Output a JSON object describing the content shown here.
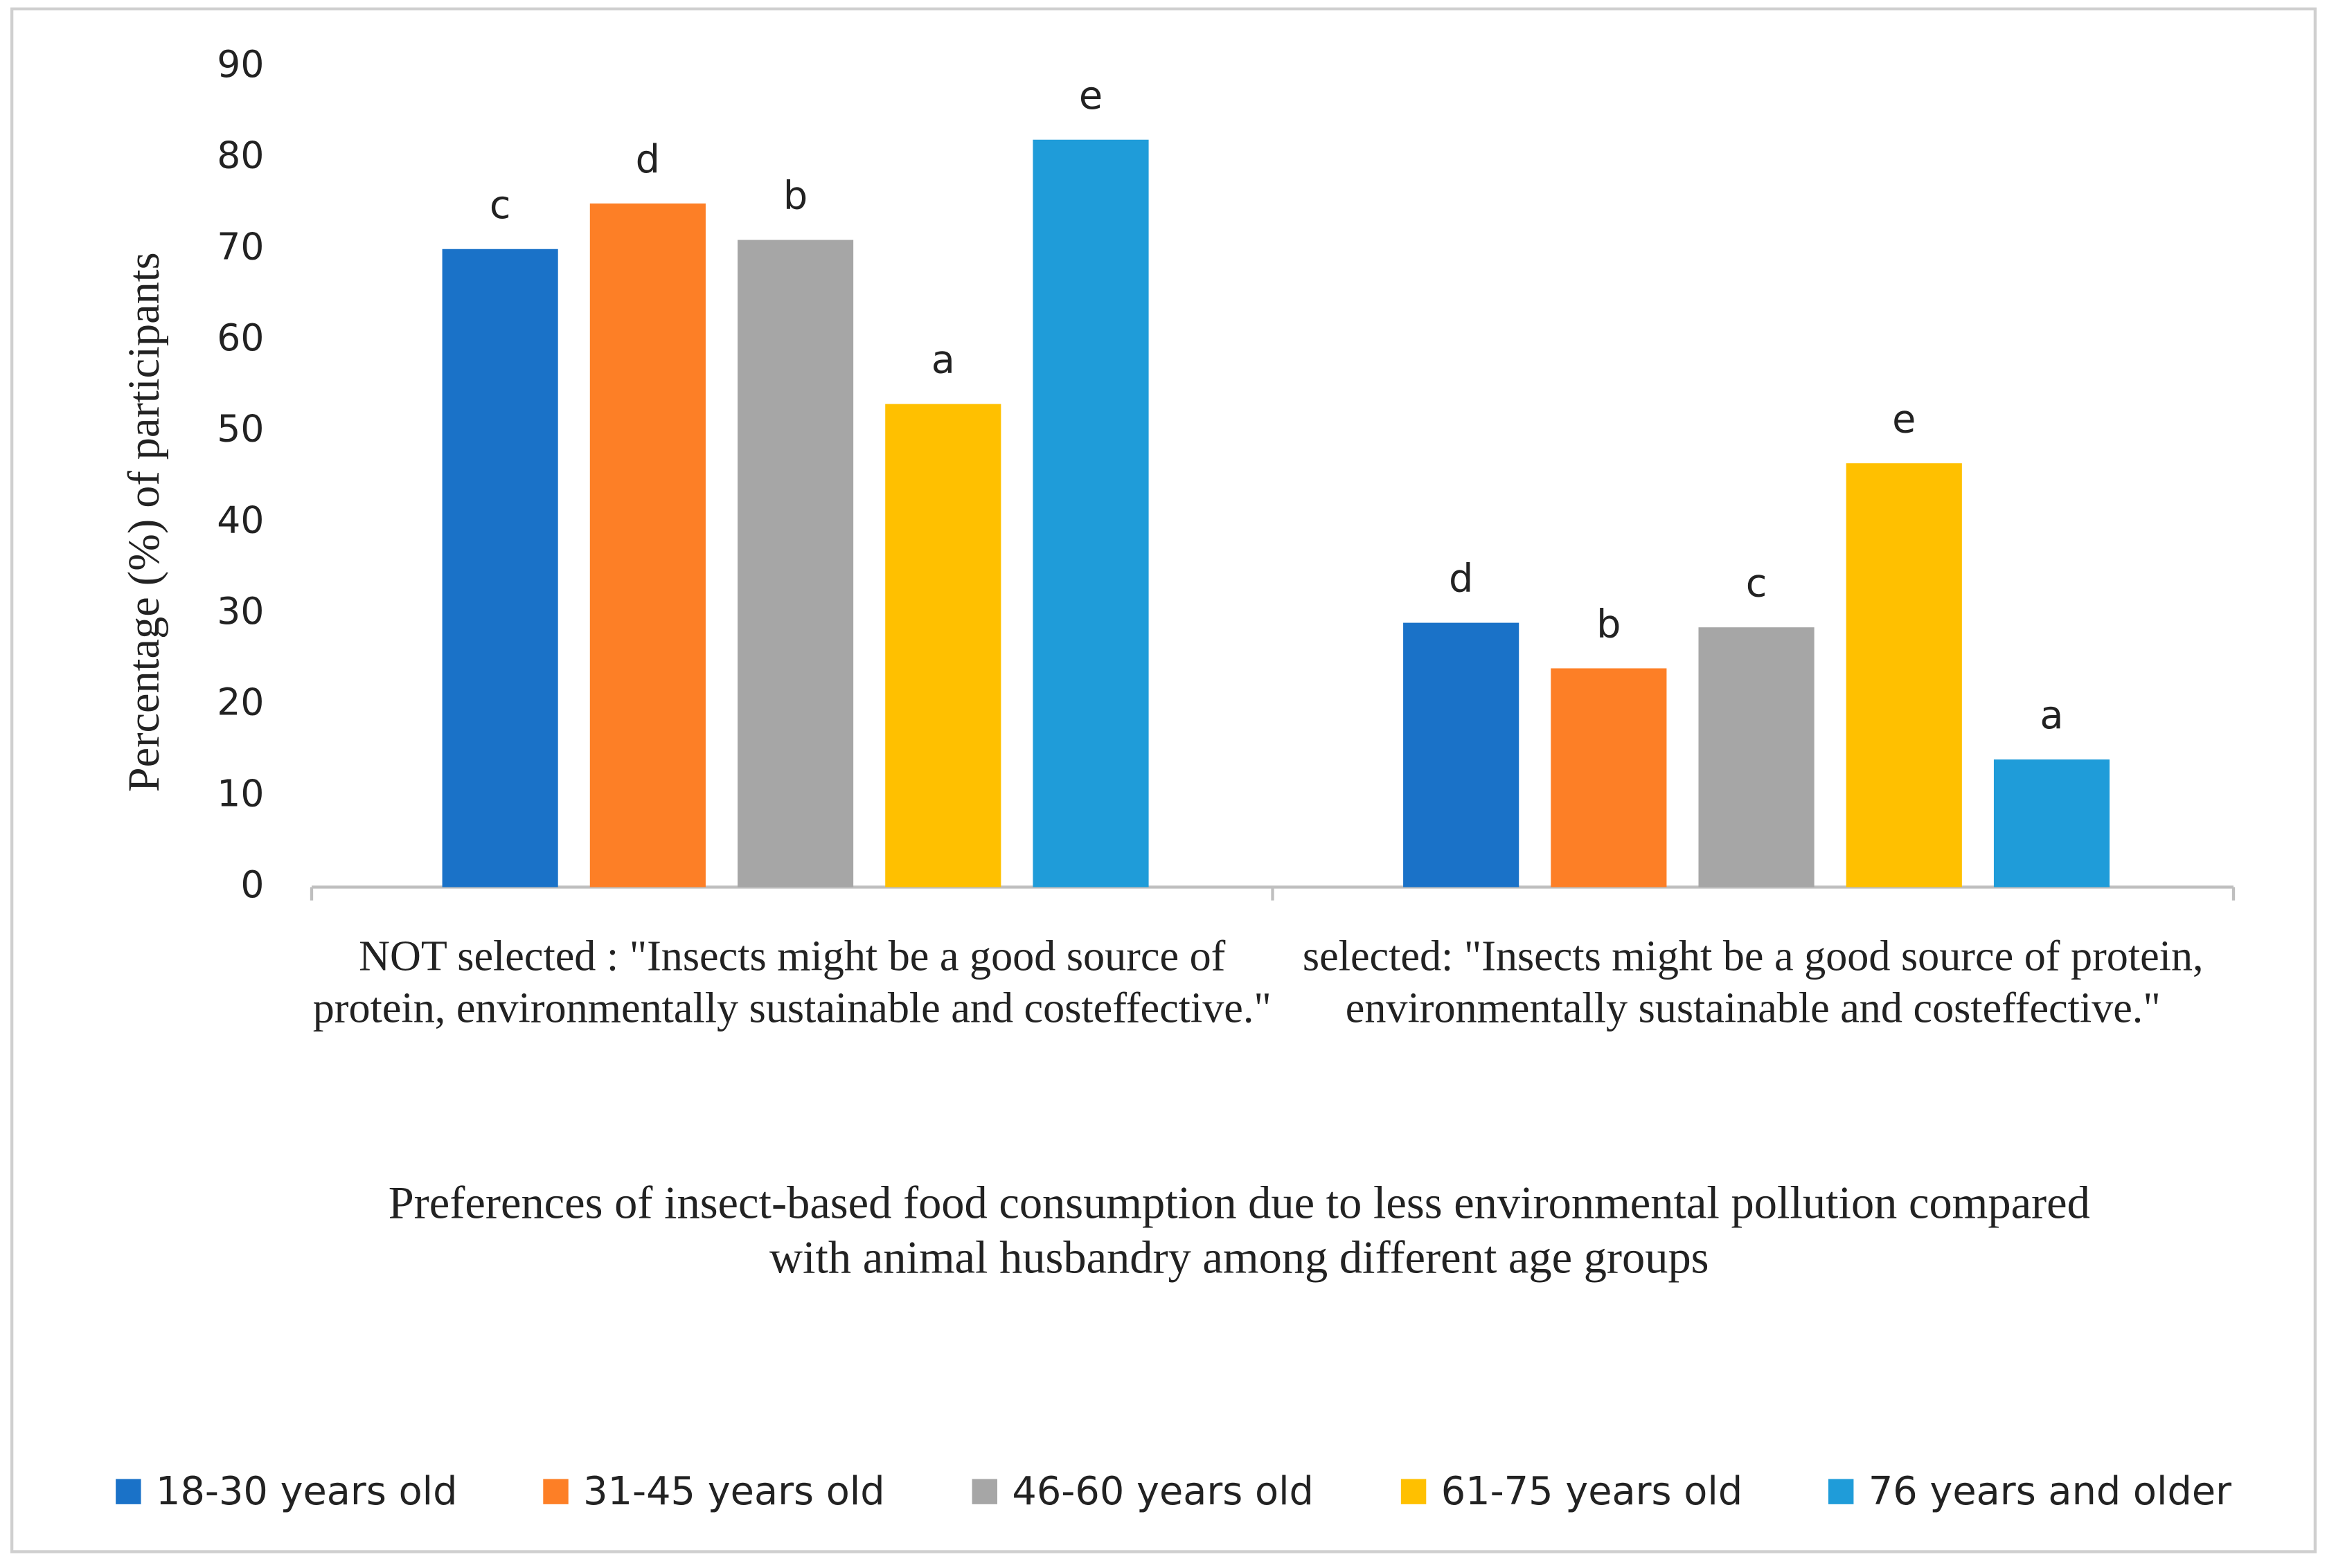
{
  "chart_data": {
    "type": "bar",
    "title": "Preferences of insect-based food consumption due to less environmental pollution compared with animal husbandry among different age groups",
    "y_label": "Percentage (%) of participants",
    "categories": [
      "NOT selected : \"Insects might be a good source of protein, environmentally sustainable and costeffective.\"",
      "selected: \"Insects might be a good source of protein, environmentally sustainable and costeffective.\""
    ],
    "series": [
      {
        "name": "18-30 years old",
        "color": "#1a72c8",
        "values": [
          70,
          29
        ],
        "letters": [
          "c",
          "d"
        ]
      },
      {
        "name": "31-45 years old",
        "color": "#fd7f26",
        "values": [
          75,
          24
        ],
        "letters": [
          "d",
          "b"
        ]
      },
      {
        "name": "46-60 years old",
        "color": "#a6a6a6",
        "values": [
          71,
          28.5
        ],
        "letters": [
          "b",
          "c"
        ]
      },
      {
        "name": "61-75 years old",
        "color": "#ffc000",
        "values": [
          53,
          46.5
        ],
        "letters": [
          "a",
          "e"
        ]
      },
      {
        "name": "76 years and older",
        "color": "#1f9cd9",
        "values": [
          82,
          14
        ],
        "letters": [
          "e",
          "a"
        ]
      }
    ],
    "ylim": [
      0,
      90
    ],
    "yticks": [
      0,
      10,
      20,
      30,
      40,
      50,
      60,
      70,
      80,
      90
    ],
    "grid": false,
    "legend": "bottom"
  }
}
